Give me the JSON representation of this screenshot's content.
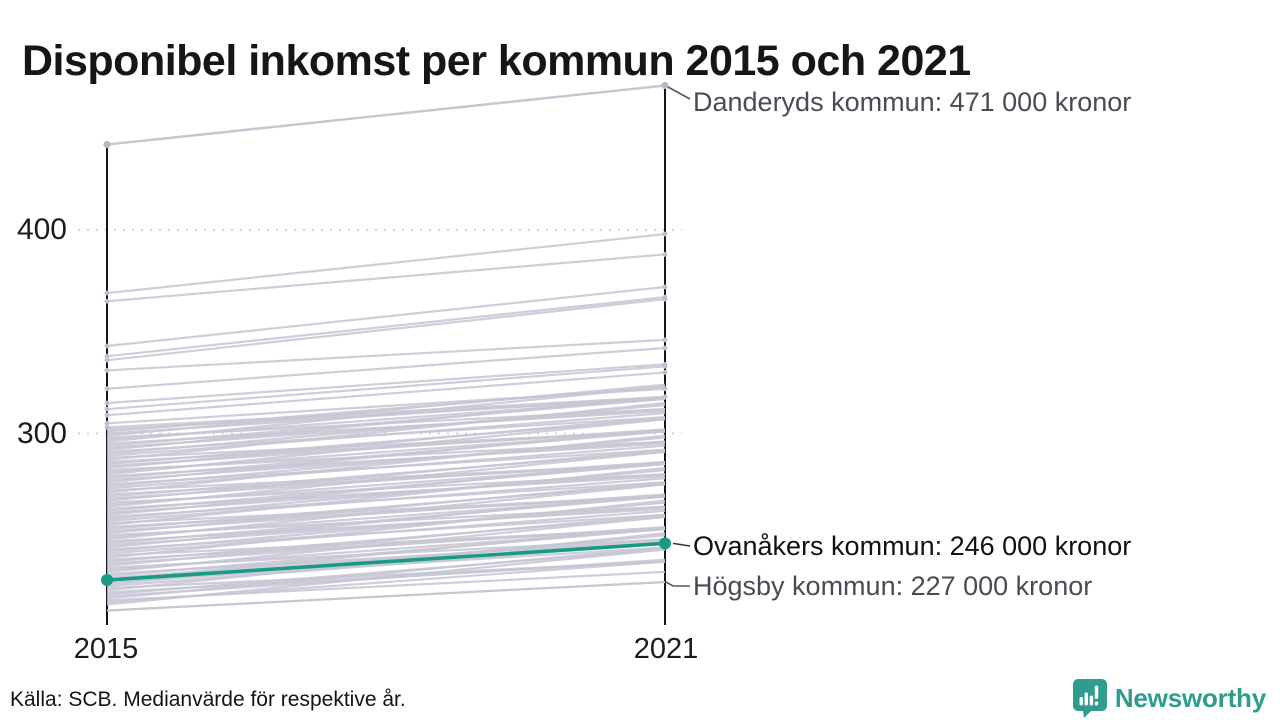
{
  "title": "Disponibel inkomst per kommun 2015 och 2021",
  "source_note": "Källa: SCB. Medianvärde för respektive år.",
  "branding": {
    "wordmark": "Newsworthy",
    "icon": "newsworthy-chart-bubble-icon",
    "color": "#2f9c8d"
  },
  "chart_data": {
    "type": "line",
    "variant": "slopegraph",
    "title": "Disponibel inkomst per kommun 2015 och 2021",
    "x_axis": {
      "tick_labels": [
        "2015",
        "2021"
      ]
    },
    "y_axis": {
      "tick_labels": [
        "400",
        "300"
      ],
      "gridlines_at": [
        400,
        300
      ],
      "value_range_thousands": [
        213,
        471
      ]
    },
    "grid": "dotted-horizontal",
    "legend_position": "none",
    "line_color_default": "#c6c5d3",
    "highlight_color": "#189a84",
    "axis_color": "#15151e",
    "series": [
      {
        "name": "Danderyds kommun",
        "role": "labeled-max",
        "values_thousands": [
          442,
          471
        ],
        "label": "Danderyds kommun: 471 000 kronor"
      },
      {
        "name": "Ovanåkers kommun",
        "role": "highlighted",
        "values_thousands": [
          228,
          246
        ],
        "label": "Ovanåkers kommun: 246 000 kronor"
      },
      {
        "name": "Högsby kommun",
        "role": "labeled-min",
        "values_thousands": [
          213,
          227
        ],
        "label": "Högsby kommun: 227 000 kronor"
      }
    ],
    "background_lines_thousands": [
      [
        369,
        398
      ],
      [
        365,
        388
      ],
      [
        343,
        372
      ],
      [
        338,
        367
      ],
      [
        336,
        366
      ],
      [
        331,
        346
      ],
      [
        322,
        342
      ],
      [
        315,
        334
      ],
      [
        312,
        333
      ],
      [
        309,
        330
      ],
      [
        305,
        322
      ],
      [
        303,
        318
      ],
      [
        302,
        317
      ],
      [
        301,
        323
      ],
      [
        300,
        318
      ],
      [
        299,
        324
      ],
      [
        298,
        312
      ],
      [
        297,
        317
      ],
      [
        296,
        323
      ],
      [
        295,
        311
      ],
      [
        294,
        317
      ],
      [
        293,
        312
      ],
      [
        292,
        318
      ],
      [
        291,
        308
      ],
      [
        290,
        314
      ],
      [
        289,
        310
      ],
      [
        288,
        301
      ],
      [
        287,
        315
      ],
      [
        286,
        301
      ],
      [
        285,
        307
      ],
      [
        284,
        302
      ],
      [
        283,
        308
      ],
      [
        282,
        296
      ],
      [
        281,
        301
      ],
      [
        280,
        307
      ],
      [
        279,
        295
      ],
      [
        278,
        301
      ],
      [
        277,
        296
      ],
      [
        276,
        302
      ],
      [
        275,
        292
      ],
      [
        274,
        298
      ],
      [
        273,
        294
      ],
      [
        272,
        285
      ],
      [
        271,
        299
      ],
      [
        270,
        285
      ],
      [
        269,
        291
      ],
      [
        268,
        286
      ],
      [
        267,
        292
      ],
      [
        266,
        280
      ],
      [
        265,
        285
      ],
      [
        264,
        291
      ],
      [
        263,
        279
      ],
      [
        262,
        285
      ],
      [
        261,
        280
      ],
      [
        260,
        286
      ],
      [
        259,
        276
      ],
      [
        258,
        282
      ],
      [
        257,
        278
      ],
      [
        256,
        269
      ],
      [
        255,
        283
      ],
      [
        254,
        269
      ],
      [
        253,
        275
      ],
      [
        252,
        270
      ],
      [
        251,
        276
      ],
      [
        250,
        264
      ],
      [
        249,
        269
      ],
      [
        248,
        275
      ],
      [
        247,
        263
      ],
      [
        246,
        269
      ],
      [
        245,
        264
      ],
      [
        244,
        270
      ],
      [
        243,
        260
      ],
      [
        242,
        266
      ],
      [
        241,
        262
      ],
      [
        240,
        253
      ],
      [
        239,
        267
      ],
      [
        238,
        253
      ],
      [
        237,
        259
      ],
      [
        236,
        254
      ],
      [
        235,
        260
      ],
      [
        234,
        248
      ],
      [
        233,
        253
      ],
      [
        232,
        259
      ],
      [
        231,
        247
      ],
      [
        230,
        253
      ],
      [
        229,
        248
      ],
      [
        228,
        254
      ],
      [
        227,
        244
      ],
      [
        226,
        250
      ],
      [
        225,
        246
      ],
      [
        224,
        237
      ],
      [
        223,
        251
      ],
      [
        222,
        237
      ],
      [
        221,
        243
      ],
      [
        220,
        238
      ],
      [
        219,
        244
      ],
      [
        218,
        232
      ],
      [
        217,
        237
      ],
      [
        216,
        243
      ]
    ]
  }
}
